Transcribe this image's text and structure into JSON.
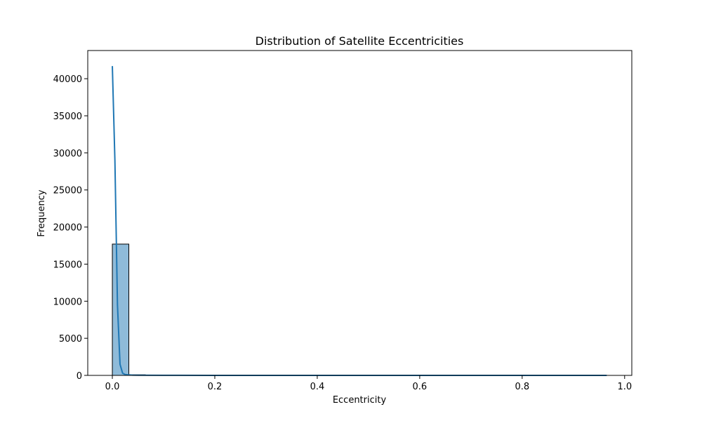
{
  "chart_data": {
    "type": "bar",
    "title": "Distribution of Satellite Eccentricities",
    "xlabel": "Eccentricity",
    "ylabel": "Frequency",
    "xlim": [
      -0.048,
      1.014
    ],
    "ylim": [
      0,
      43800
    ],
    "xticks": [
      0.0,
      0.2,
      0.4,
      0.6,
      0.8,
      1.0
    ],
    "xtick_labels": [
      "0.0",
      "0.2",
      "0.4",
      "0.6",
      "0.8",
      "1.0"
    ],
    "yticks": [
      0,
      5000,
      10000,
      15000,
      20000,
      25000,
      30000,
      35000,
      40000
    ],
    "ytick_labels": [
      "0",
      "5000",
      "10000",
      "15000",
      "20000",
      "25000",
      "30000",
      "35000",
      "40000"
    ],
    "histogram": {
      "bin_width": 0.0322,
      "bin_starts": [
        0.0,
        0.0322,
        0.0644,
        0.0966,
        0.1288,
        0.161,
        0.1932,
        0.2254,
        0.2576,
        0.2898,
        0.322,
        0.3542,
        0.3864,
        0.4186,
        0.4508,
        0.483,
        0.5152,
        0.5474,
        0.5796,
        0.6118,
        0.644,
        0.6762,
        0.7084,
        0.7406,
        0.7728,
        0.805,
        0.8372,
        0.8694,
        0.9016,
        0.9338
      ],
      "counts": [
        17700,
        80,
        30,
        20,
        15,
        12,
        10,
        8,
        8,
        6,
        5,
        5,
        4,
        4,
        3,
        3,
        3,
        3,
        2,
        2,
        2,
        2,
        2,
        2,
        2,
        2,
        1,
        1,
        1,
        1
      ],
      "fill_color": "#8fbbd9",
      "edge_color": "#000000"
    },
    "kde": {
      "x": [
        0.0,
        0.005,
        0.01,
        0.015,
        0.02,
        0.025,
        0.03,
        0.04,
        0.05,
        0.1,
        0.2,
        0.3,
        0.4,
        0.5,
        0.6,
        0.7,
        0.8,
        0.9,
        0.965
      ],
      "y": [
        41700,
        29000,
        9500,
        1500,
        300,
        120,
        80,
        40,
        25,
        10,
        6,
        4,
        3,
        3,
        2,
        2,
        2,
        1,
        1
      ],
      "color": "#1f77b4"
    },
    "grid": false,
    "legend": "none"
  }
}
